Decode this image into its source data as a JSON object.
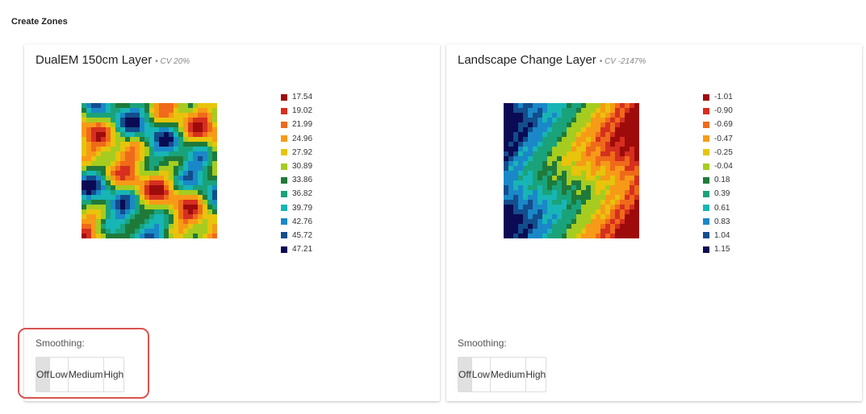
{
  "header": {
    "title": "Create Zones"
  },
  "panels": [
    {
      "title": "DualEM 150cm Layer",
      "cv": "• CV 20%",
      "legend": [
        "17.54",
        "19.02",
        "21.99",
        "24.96",
        "27.92",
        "30.89",
        "33.86",
        "36.82",
        "39.79",
        "42.76",
        "45.72",
        "47.21"
      ],
      "smoothing_label": "Smoothing:",
      "options": [
        "Off",
        "Low",
        "Medium",
        "High"
      ]
    },
    {
      "title": "Landscape Change Layer",
      "cv": "• CV -2147%",
      "legend": [
        "-1.01",
        "-0.90",
        "-0.69",
        "-0.47",
        "-0.25",
        "-0.04",
        "0.18",
        "0.39",
        "0.61",
        "0.83",
        "1.04",
        "1.15"
      ],
      "smoothing_label": "Smoothing:",
      "options": [
        "Off",
        "Low",
        "Medium",
        "High"
      ]
    }
  ]
}
